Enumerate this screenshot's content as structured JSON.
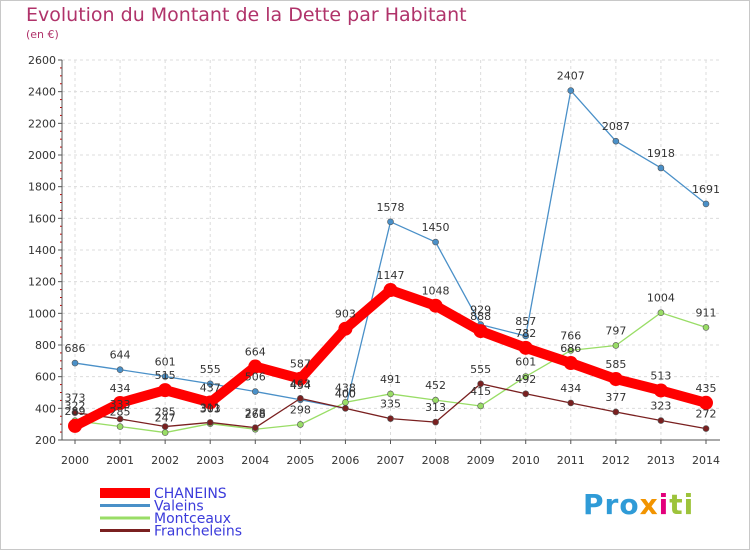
{
  "header": {
    "title": "Evolution du Montant de la Dette par Habitant",
    "subtitle": "(en €)"
  },
  "brand": {
    "text": "Proxiti",
    "colors": [
      "#2f9bd7",
      "#f29400",
      "#9dc33b",
      "#e3007b"
    ]
  },
  "chart_data": {
    "type": "line",
    "title": "Evolution du Montant de la Dette par Habitant",
    "ylabel": "(en €)",
    "x": [
      2000,
      2001,
      2002,
      2003,
      2004,
      2005,
      2006,
      2007,
      2008,
      2009,
      2010,
      2011,
      2012,
      2013,
      2014
    ],
    "ylim": [
      200,
      2600
    ],
    "yticks": [
      200,
      400,
      600,
      800,
      1000,
      1200,
      1400,
      1600,
      1800,
      2000,
      2200,
      2400,
      2600
    ],
    "grid": true,
    "legend_position": "bottom-left",
    "series": [
      {
        "name": "CHANEINS",
        "color": "#ff0000",
        "values": [
          289,
          434,
          515,
          437,
          664,
          587,
          903,
          1147,
          1048,
          888,
          782,
          686,
          585,
          513,
          435
        ]
      },
      {
        "name": "Valeins",
        "color": "#4a90c8",
        "values": [
          686,
          644,
          601,
          555,
          506,
          454,
          400,
          1578,
          1450,
          929,
          857,
          2407,
          2087,
          1918,
          1691
        ]
      },
      {
        "name": "Montceaux",
        "color": "#99dd66",
        "values": [
          322,
          285,
          247,
          303,
          268,
          298,
          438,
          491,
          452,
          415,
          601,
          766,
          797,
          1004,
          911
        ]
      },
      {
        "name": "Francheleins",
        "color": "#7a2020",
        "values": [
          373,
          333,
          285,
          311,
          278,
          463,
          400,
          335,
          313,
          555,
          492,
          434,
          377,
          323,
          272
        ]
      }
    ]
  }
}
